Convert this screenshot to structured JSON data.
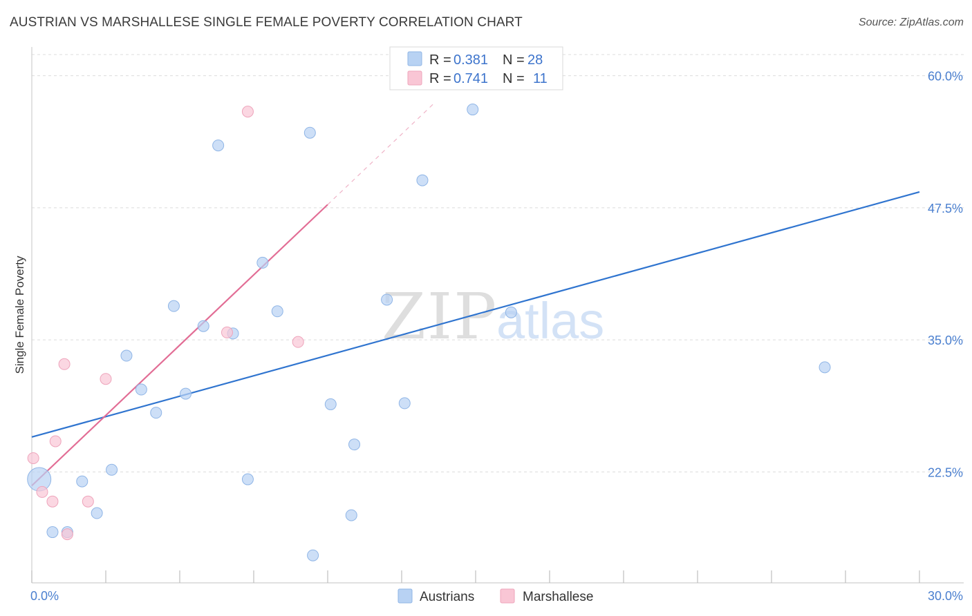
{
  "header": {
    "title": "AUSTRIAN VS MARSHALLESE SINGLE FEMALE POVERTY CORRELATION CHART",
    "source": "Source: ZipAtlas.com"
  },
  "watermark": {
    "zip": "ZIP",
    "atlas": "atlas"
  },
  "legend": {
    "austrians": {
      "r_label": "R =",
      "r_value": "0.381",
      "n_label": "N =",
      "n_value": "28"
    },
    "marshallese": {
      "r_label": "R =",
      "r_value": "0.741",
      "n_label": "N =",
      "n_value": "11"
    }
  },
  "colors": {
    "austrians_fill": "#b8d2f3",
    "austrians_stroke": "#8fb5e6",
    "austrians_line": "#2f74cf",
    "marshallese_fill": "#f9c6d5",
    "marshallese_stroke": "#eea4bb",
    "marshallese_line": "#e26d95",
    "grid": "#dcdcdc",
    "tick_text": "#4a7fcf"
  },
  "chart_data": {
    "type": "scatter",
    "title": "AUSTRIAN VS MARSHALLESE SINGLE FEMALE POVERTY CORRELATION CHART",
    "xlabel": "",
    "ylabel": "Single Female Poverty",
    "xlim": [
      0,
      30
    ],
    "ylim": [
      12,
      62
    ],
    "x_tick_labels": [
      "0.0%",
      "30.0%"
    ],
    "y_ticks": [
      22.5,
      35.0,
      47.5,
      60.0
    ],
    "y_tick_labels": [
      "22.5%",
      "35.0%",
      "47.5%",
      "60.0%"
    ],
    "grid": true,
    "legend_position": "top-center",
    "series": [
      {
        "name": "Austrians",
        "points": [
          {
            "x": 0.25,
            "y": 21.8,
            "large": true
          },
          {
            "x": 0.7,
            "y": 16.8
          },
          {
            "x": 1.2,
            "y": 16.8
          },
          {
            "x": 1.7,
            "y": 21.6
          },
          {
            "x": 2.2,
            "y": 18.6
          },
          {
            "x": 2.7,
            "y": 22.7
          },
          {
            "x": 3.2,
            "y": 33.5
          },
          {
            "x": 3.7,
            "y": 30.3
          },
          {
            "x": 4.2,
            "y": 28.1
          },
          {
            "x": 4.8,
            "y": 38.2
          },
          {
            "x": 5.2,
            "y": 29.9
          },
          {
            "x": 5.8,
            "y": 36.3
          },
          {
            "x": 6.3,
            "y": 53.4
          },
          {
            "x": 6.8,
            "y": 35.6
          },
          {
            "x": 7.3,
            "y": 21.8
          },
          {
            "x": 7.8,
            "y": 42.3
          },
          {
            "x": 8.3,
            "y": 37.7
          },
          {
            "x": 9.4,
            "y": 54.6
          },
          {
            "x": 9.5,
            "y": 14.6
          },
          {
            "x": 10.1,
            "y": 28.9
          },
          {
            "x": 10.8,
            "y": 18.4
          },
          {
            "x": 10.9,
            "y": 25.1
          },
          {
            "x": 12.0,
            "y": 38.8
          },
          {
            "x": 12.6,
            "y": 29.0
          },
          {
            "x": 13.2,
            "y": 50.1
          },
          {
            "x": 14.9,
            "y": 56.8
          },
          {
            "x": 16.2,
            "y": 37.6
          },
          {
            "x": 26.8,
            "y": 32.4
          }
        ],
        "trend": {
          "x1": 0.0,
          "y1": 25.8,
          "x2": 30.0,
          "y2": 49.0
        }
      },
      {
        "name": "Marshallese",
        "points": [
          {
            "x": 0.05,
            "y": 23.8
          },
          {
            "x": 0.35,
            "y": 20.6
          },
          {
            "x": 0.7,
            "y": 19.7
          },
          {
            "x": 0.8,
            "y": 25.4
          },
          {
            "x": 1.1,
            "y": 32.7
          },
          {
            "x": 1.2,
            "y": 16.6
          },
          {
            "x": 1.9,
            "y": 19.7
          },
          {
            "x": 2.5,
            "y": 31.3
          },
          {
            "x": 6.6,
            "y": 35.7
          },
          {
            "x": 7.3,
            "y": 56.6
          },
          {
            "x": 9.0,
            "y": 34.8
          }
        ],
        "trend": {
          "x1": 0.0,
          "y1": 21.2,
          "x2": 10.0,
          "y2": 47.8
        },
        "trend_extension": {
          "x1": 10.0,
          "y1": 47.8,
          "x2": 13.6,
          "y2": 57.4
        }
      }
    ]
  }
}
